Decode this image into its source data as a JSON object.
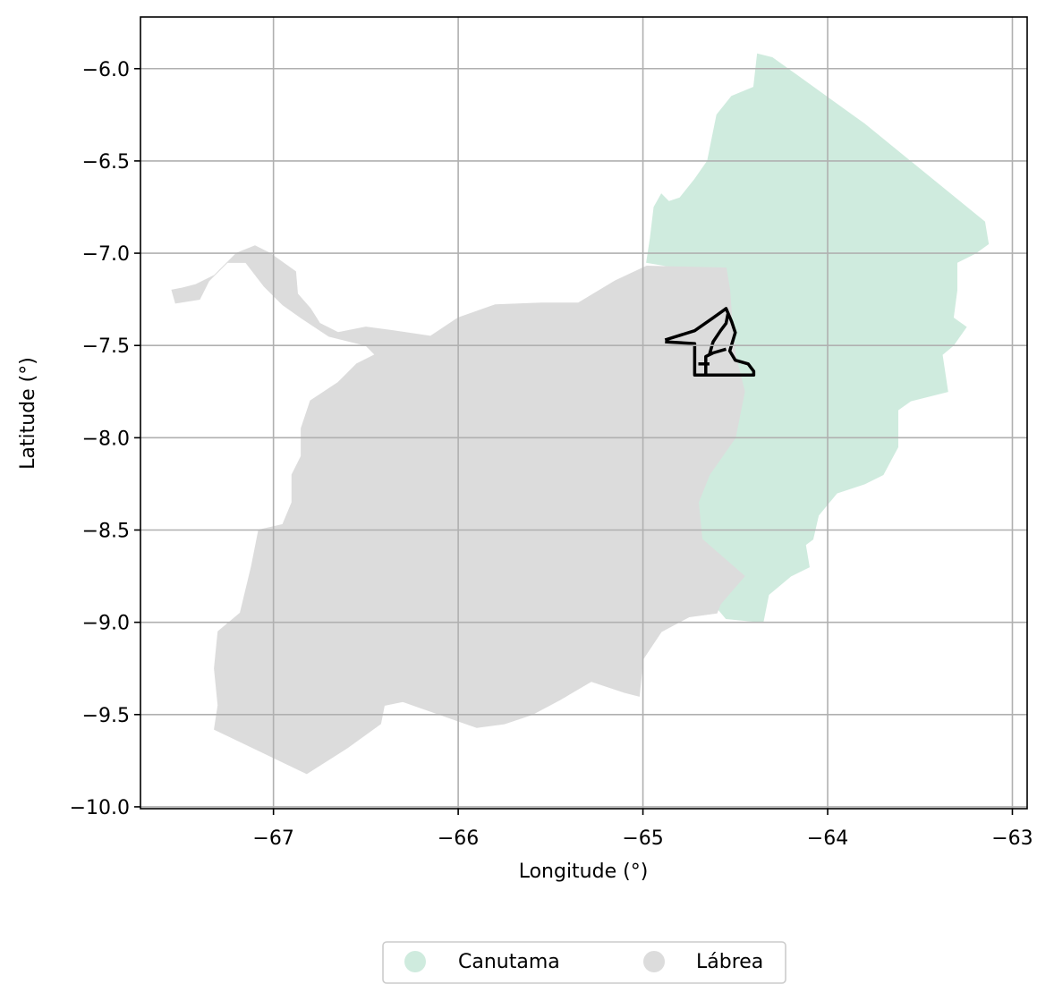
{
  "chart_data": {
    "type": "map",
    "xlabel": "Longitude (°)",
    "ylabel": "Latitude (°)",
    "xlim": [
      -67.72,
      -62.92
    ],
    "ylim": [
      -10.01,
      -5.72
    ],
    "x_ticks": [
      -67,
      -66,
      -65,
      -64,
      -63
    ],
    "y_ticks": [
      -6.0,
      -6.5,
      -7.0,
      -7.5,
      -8.0,
      -8.5,
      -9.0,
      -9.5,
      -10.0
    ],
    "x_tick_labels": [
      "−67",
      "−66",
      "−65",
      "−64",
      "−63"
    ],
    "y_tick_labels": [
      "−6.0",
      "−6.5",
      "−7.0",
      "−7.5",
      "−8.0",
      "−8.5",
      "−9.0",
      "−9.5",
      "−10.0"
    ],
    "grid": true,
    "legend_placement": "bottom-center",
    "regions": [
      {
        "name": "Canutama",
        "color": "#cfebde",
        "coords": [
          [
            -64.38,
            -5.92
          ],
          [
            -64.3,
            -5.94
          ],
          [
            -63.8,
            -6.3
          ],
          [
            -63.15,
            -6.83
          ],
          [
            -63.13,
            -6.95
          ],
          [
            -63.2,
            -7.0
          ],
          [
            -63.3,
            -7.05
          ],
          [
            -63.3,
            -7.2
          ],
          [
            -63.32,
            -7.35
          ],
          [
            -63.25,
            -7.4
          ],
          [
            -63.32,
            -7.5
          ],
          [
            -63.38,
            -7.55
          ],
          [
            -63.35,
            -7.75
          ],
          [
            -63.55,
            -7.8
          ],
          [
            -63.62,
            -7.85
          ],
          [
            -63.62,
            -8.05
          ],
          [
            -63.7,
            -8.2
          ],
          [
            -63.8,
            -8.25
          ],
          [
            -63.95,
            -8.3
          ],
          [
            -64.05,
            -8.42
          ],
          [
            -64.08,
            -8.55
          ],
          [
            -64.12,
            -8.58
          ],
          [
            -64.1,
            -8.7
          ],
          [
            -64.2,
            -8.75
          ],
          [
            -64.32,
            -8.85
          ],
          [
            -64.35,
            -9.0
          ],
          [
            -64.55,
            -8.98
          ],
          [
            -64.6,
            -8.92
          ],
          [
            -64.62,
            -8.8
          ],
          [
            -64.68,
            -8.62
          ],
          [
            -64.7,
            -8.35
          ],
          [
            -64.64,
            -8.2
          ],
          [
            -64.5,
            -8.0
          ],
          [
            -64.45,
            -7.75
          ],
          [
            -64.5,
            -7.55
          ],
          [
            -64.52,
            -7.35
          ],
          [
            -64.54,
            -7.2
          ],
          [
            -64.55,
            -7.08
          ],
          [
            -64.8,
            -7.08
          ],
          [
            -64.98,
            -7.05
          ],
          [
            -64.96,
            -6.92
          ],
          [
            -64.94,
            -6.75
          ],
          [
            -64.9,
            -6.68
          ],
          [
            -64.86,
            -6.72
          ],
          [
            -64.8,
            -6.7
          ],
          [
            -64.72,
            -6.6
          ],
          [
            -64.65,
            -6.5
          ],
          [
            -64.62,
            -6.35
          ],
          [
            -64.6,
            -6.25
          ],
          [
            -64.52,
            -6.15
          ],
          [
            -64.4,
            -6.1
          ]
        ]
      },
      {
        "name": "Lábrea",
        "color": "#dcdcdc",
        "coords": [
          [
            -67.5,
            -7.19
          ],
          [
            -67.42,
            -7.17
          ],
          [
            -67.32,
            -7.12
          ],
          [
            -67.2,
            -7.0
          ],
          [
            -67.1,
            -6.96
          ],
          [
            -67.02,
            -7.0
          ],
          [
            -66.95,
            -7.05
          ],
          [
            -66.88,
            -7.1
          ],
          [
            -66.87,
            -7.22
          ],
          [
            -66.8,
            -7.3
          ],
          [
            -66.75,
            -7.38
          ],
          [
            -66.65,
            -7.43
          ],
          [
            -66.5,
            -7.4
          ],
          [
            -66.35,
            -7.42
          ],
          [
            -66.15,
            -7.45
          ],
          [
            -66.0,
            -7.35
          ],
          [
            -65.8,
            -7.28
          ],
          [
            -65.55,
            -7.27
          ],
          [
            -65.35,
            -7.27
          ],
          [
            -65.15,
            -7.15
          ],
          [
            -64.98,
            -7.07
          ],
          [
            -64.55,
            -7.08
          ],
          [
            -64.53,
            -7.2
          ],
          [
            -64.52,
            -7.35
          ],
          [
            -64.5,
            -7.55
          ],
          [
            -64.45,
            -7.75
          ],
          [
            -64.5,
            -8.0
          ],
          [
            -64.64,
            -8.2
          ],
          [
            -64.7,
            -8.35
          ],
          [
            -64.68,
            -8.55
          ],
          [
            -64.45,
            -8.75
          ],
          [
            -64.58,
            -8.9
          ],
          [
            -64.6,
            -8.95
          ],
          [
            -64.75,
            -8.97
          ],
          [
            -64.9,
            -9.05
          ],
          [
            -65.0,
            -9.2
          ],
          [
            -65.02,
            -9.4
          ],
          [
            -65.1,
            -9.38
          ],
          [
            -65.28,
            -9.32
          ],
          [
            -65.45,
            -9.42
          ],
          [
            -65.6,
            -9.5
          ],
          [
            -65.75,
            -9.55
          ],
          [
            -65.9,
            -9.57
          ],
          [
            -66.1,
            -9.5
          ],
          [
            -66.3,
            -9.43
          ],
          [
            -66.4,
            -9.45
          ],
          [
            -66.42,
            -9.55
          ],
          [
            -66.6,
            -9.68
          ],
          [
            -66.82,
            -9.82
          ],
          [
            -67.32,
            -9.58
          ],
          [
            -67.3,
            -9.45
          ],
          [
            -67.32,
            -9.25
          ],
          [
            -67.3,
            -9.05
          ],
          [
            -67.18,
            -8.95
          ],
          [
            -67.12,
            -8.7
          ],
          [
            -67.08,
            -8.5
          ],
          [
            -66.95,
            -8.47
          ],
          [
            -66.9,
            -8.35
          ],
          [
            -66.9,
            -8.2
          ],
          [
            -66.85,
            -8.1
          ],
          [
            -66.85,
            -7.95
          ],
          [
            -66.8,
            -7.8
          ],
          [
            -66.65,
            -7.7
          ],
          [
            -66.55,
            -7.6
          ],
          [
            -66.45,
            -7.55
          ],
          [
            -66.5,
            -7.5
          ],
          [
            -66.7,
            -7.45
          ],
          [
            -66.85,
            -7.35
          ],
          [
            -66.95,
            -7.28
          ],
          [
            -67.05,
            -7.18
          ],
          [
            -67.15,
            -7.05
          ],
          [
            -67.25,
            -7.05
          ],
          [
            -67.35,
            -7.15
          ],
          [
            -67.4,
            -7.25
          ],
          [
            -67.53,
            -7.27
          ],
          [
            -67.55,
            -7.2
          ]
        ]
      }
    ],
    "overlay": {
      "color": "#000000",
      "paths": [
        [
          [
            -64.88,
            -7.47
          ],
          [
            -64.72,
            -7.42
          ],
          [
            -64.62,
            -7.35
          ],
          [
            -64.55,
            -7.3
          ],
          [
            -64.52,
            -7.37
          ],
          [
            -64.5,
            -7.43
          ],
          [
            -64.53,
            -7.53
          ],
          [
            -64.5,
            -7.58
          ],
          [
            -64.43,
            -7.6
          ],
          [
            -64.4,
            -7.64
          ],
          [
            -64.4,
            -7.66
          ],
          [
            -64.72,
            -7.66
          ],
          [
            -64.72,
            -7.49
          ],
          [
            -64.88,
            -7.48
          ]
        ],
        [
          [
            -64.64,
            -7.55
          ],
          [
            -64.62,
            -7.48
          ],
          [
            -64.58,
            -7.42
          ],
          [
            -64.55,
            -7.38
          ],
          [
            -64.54,
            -7.33
          ]
        ],
        [
          [
            -64.66,
            -7.66
          ],
          [
            -64.66,
            -7.56
          ],
          [
            -64.62,
            -7.54
          ],
          [
            -64.55,
            -7.52
          ]
        ],
        [
          [
            -64.7,
            -7.6
          ],
          [
            -64.64,
            -7.6
          ]
        ]
      ]
    }
  },
  "legend": {
    "items": [
      {
        "label": "Canutama",
        "color": "#cfebde"
      },
      {
        "label": "Lábrea",
        "color": "#dcdcdc"
      }
    ]
  }
}
